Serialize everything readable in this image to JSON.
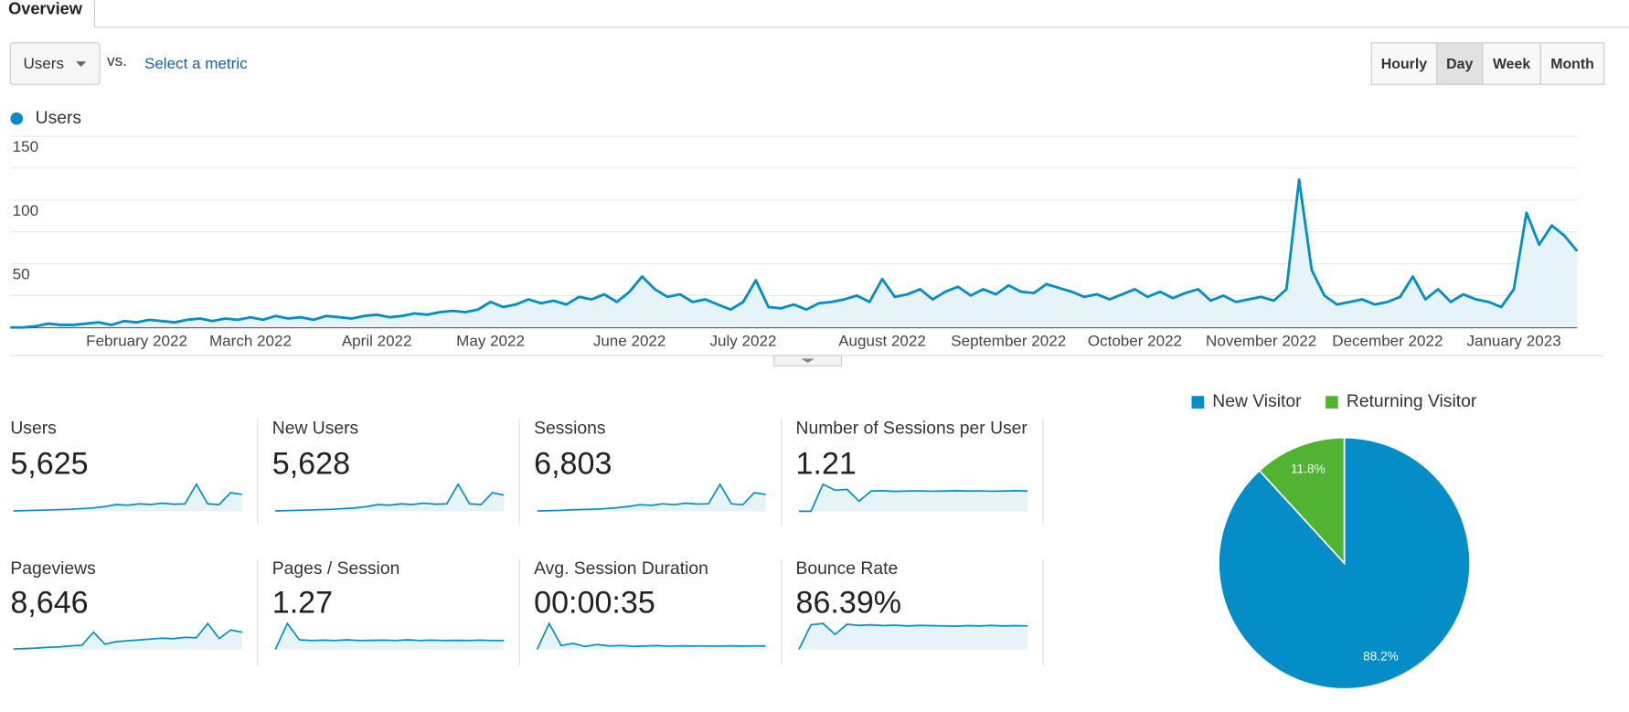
{
  "ui": {
    "tab": "Overview",
    "metric_selector": "Users",
    "vs": "vs.",
    "compare_link": "Select a metric",
    "granularity": [
      "Hourly",
      "Day",
      "Week",
      "Month"
    ],
    "selected_granularity": 1
  },
  "chart_data": [
    {
      "type": "line",
      "categories": [
        null,
        null,
        null,
        null,
        null,
        null,
        null,
        null,
        null,
        null,
        "February 2022",
        null,
        null,
        null,
        null,
        null,
        null,
        null,
        null,
        "March 2022",
        null,
        null,
        null,
        null,
        null,
        null,
        null,
        null,
        null,
        "April 2022",
        null,
        null,
        null,
        null,
        null,
        null,
        null,
        null,
        "May 2022",
        null,
        null,
        null,
        null,
        null,
        null,
        null,
        null,
        null,
        null,
        "June 2022",
        null,
        null,
        null,
        null,
        null,
        null,
        null,
        null,
        "July 2022",
        null,
        null,
        null,
        null,
        null,
        null,
        null,
        null,
        null,
        null,
        "August 2022",
        null,
        null,
        null,
        null,
        null,
        null,
        null,
        null,
        null,
        "September 2022",
        null,
        null,
        null,
        null,
        null,
        null,
        null,
        null,
        null,
        "October 2022",
        null,
        null,
        null,
        null,
        null,
        null,
        null,
        null,
        null,
        "November 2022",
        null,
        null,
        null,
        null,
        null,
        null,
        null,
        null,
        null,
        "December 2022",
        null,
        null,
        null,
        null,
        null,
        null,
        null,
        null,
        null,
        "January 2023",
        null,
        null,
        null,
        null,
        null
      ],
      "series": [
        {
          "name": "Users",
          "color": "#058dc7",
          "fill": "#e6f4fa",
          "values": [
            0,
            0,
            1,
            3,
            2,
            2,
            3,
            4,
            2,
            5,
            4,
            6,
            5,
            4,
            6,
            7,
            5,
            7,
            6,
            8,
            6,
            9,
            7,
            8,
            6,
            9,
            8,
            7,
            9,
            10,
            8,
            9,
            11,
            10,
            12,
            13,
            12,
            14,
            20,
            16,
            18,
            22,
            19,
            21,
            18,
            24,
            22,
            26,
            20,
            28,
            40,
            30,
            24,
            26,
            20,
            22,
            18,
            14,
            20,
            37,
            16,
            15,
            18,
            14,
            19,
            20,
            22,
            25,
            20,
            38,
            24,
            26,
            30,
            22,
            28,
            32,
            25,
            30,
            26,
            33,
            28,
            27,
            34,
            31,
            28,
            24,
            26,
            22,
            26,
            30,
            24,
            28,
            23,
            27,
            30,
            21,
            25,
            20,
            22,
            24,
            21,
            30,
            116,
            45,
            25,
            18,
            20,
            22,
            18,
            20,
            24,
            40,
            22,
            30,
            20,
            26,
            22,
            20,
            16,
            30,
            90,
            65,
            80,
            72,
            60
          ]
        }
      ],
      "ylim": [
        0,
        150
      ],
      "yticks": [
        {
          "value": 25,
          "label": null
        },
        50,
        {
          "value": 75,
          "label": null
        },
        100,
        {
          "value": 125,
          "label": null
        },
        150
      ],
      "grid": true
    },
    {
      "type": "pie",
      "categories": [
        "New Visitor",
        "Returning Visitor"
      ],
      "values": [
        88.2,
        11.8
      ],
      "value_labels": [
        "88.2%",
        "11.8%"
      ],
      "colors": [
        "#058dc7",
        "#50b432"
      ]
    }
  ],
  "metrics": [
    {
      "label": "Users",
      "value": "5,625",
      "sparkline": [
        1,
        2,
        3,
        4,
        5,
        6,
        8,
        10,
        14,
        20,
        18,
        22,
        20,
        24,
        21,
        22,
        80,
        22,
        20,
        55,
        50
      ]
    },
    {
      "label": "New Users",
      "value": "5,628",
      "sparkline": [
        1,
        2,
        3,
        4,
        5,
        6,
        8,
        10,
        14,
        20,
        18,
        22,
        20,
        24,
        21,
        22,
        80,
        22,
        20,
        55,
        48
      ]
    },
    {
      "label": "Sessions",
      "value": "6,803",
      "sparkline": [
        1,
        2,
        3,
        5,
        6,
        7,
        9,
        12,
        16,
        22,
        20,
        25,
        22,
        27,
        24,
        25,
        90,
        25,
        22,
        62,
        56
      ]
    },
    {
      "label": "Number of Sessions per User",
      "value": "1.21",
      "sparkline": [
        0,
        0,
        1.6,
        1.25,
        1.3,
        0.6,
        1.2,
        1.22,
        1.18,
        1.2,
        1.21,
        1.19,
        1.2,
        1.22,
        1.2,
        1.21,
        1.19,
        1.2,
        1.22,
        1.2
      ]
    },
    {
      "label": "Pageviews",
      "value": "8,646",
      "sparkline": [
        1,
        2,
        3,
        5,
        6,
        8,
        10,
        40,
        12,
        18,
        20,
        22,
        24,
        26,
        25,
        28,
        27,
        60,
        25,
        45,
        40
      ]
    },
    {
      "label": "Pages / Session",
      "value": "1.27",
      "sparkline": [
        0,
        3.5,
        1.3,
        1.2,
        1.25,
        1.2,
        1.3,
        1.2,
        1.22,
        1.25,
        1.2,
        1.3,
        1.2,
        1.25,
        1.2,
        1.22,
        1.2,
        1.25,
        1.2,
        1.2
      ]
    },
    {
      "label": "Avg. Session Duration",
      "value": "00:00:35",
      "sparkline": [
        0,
        260,
        40,
        60,
        30,
        50,
        35,
        40,
        30,
        35,
        38,
        32,
        36,
        34,
        35,
        33,
        36,
        34,
        35,
        35
      ]
    },
    {
      "label": "Bounce Rate",
      "value": "86.39%",
      "sparkline": [
        0,
        90,
        95,
        55,
        92,
        88,
        90,
        87,
        89,
        86,
        88,
        87,
        86,
        85,
        87,
        86,
        88,
        86,
        87,
        86
      ]
    }
  ]
}
